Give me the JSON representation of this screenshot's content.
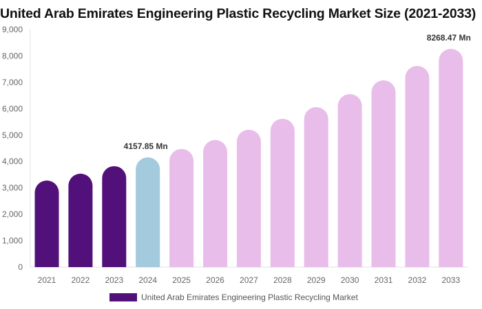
{
  "chart_data": {
    "type": "bar",
    "title": "United Arab Emirates Engineering Plastic Recycling Market Size (2021-2033)",
    "categories": [
      "2021",
      "2022",
      "2023",
      "2024",
      "2025",
      "2026",
      "2027",
      "2028",
      "2029",
      "2030",
      "2031",
      "2032",
      "2033"
    ],
    "series": [
      {
        "name": "United Arab Emirates Engineering Plastic Recycling Market",
        "values": [
          3280,
          3540,
          3825,
          4157.85,
          4475,
          4815,
          5205,
          5620,
          6060,
          6555,
          7075,
          7620,
          8268.47
        ]
      }
    ],
    "data_labels": [
      {
        "category": "2024",
        "text": "4157.85 Mn"
      },
      {
        "category": "2033",
        "text": "8268.47 Mn"
      }
    ],
    "yticks": [
      "0",
      "1,000",
      "2,000",
      "3,000",
      "4,000",
      "5,000",
      "6,000",
      "7,000",
      "8,000",
      "9,000"
    ],
    "ylim": [
      0,
      9000
    ],
    "xlabel": "",
    "ylabel": "",
    "grid": false,
    "legend_position": "bottom",
    "colors": {
      "historical": "#52107a",
      "base_year": "#a4cade",
      "forecast": "#e8bde9"
    },
    "bar_color_groups": [
      "historical",
      "historical",
      "historical",
      "base_year",
      "forecast",
      "forecast",
      "forecast",
      "forecast",
      "forecast",
      "forecast",
      "forecast",
      "forecast",
      "forecast"
    ]
  }
}
